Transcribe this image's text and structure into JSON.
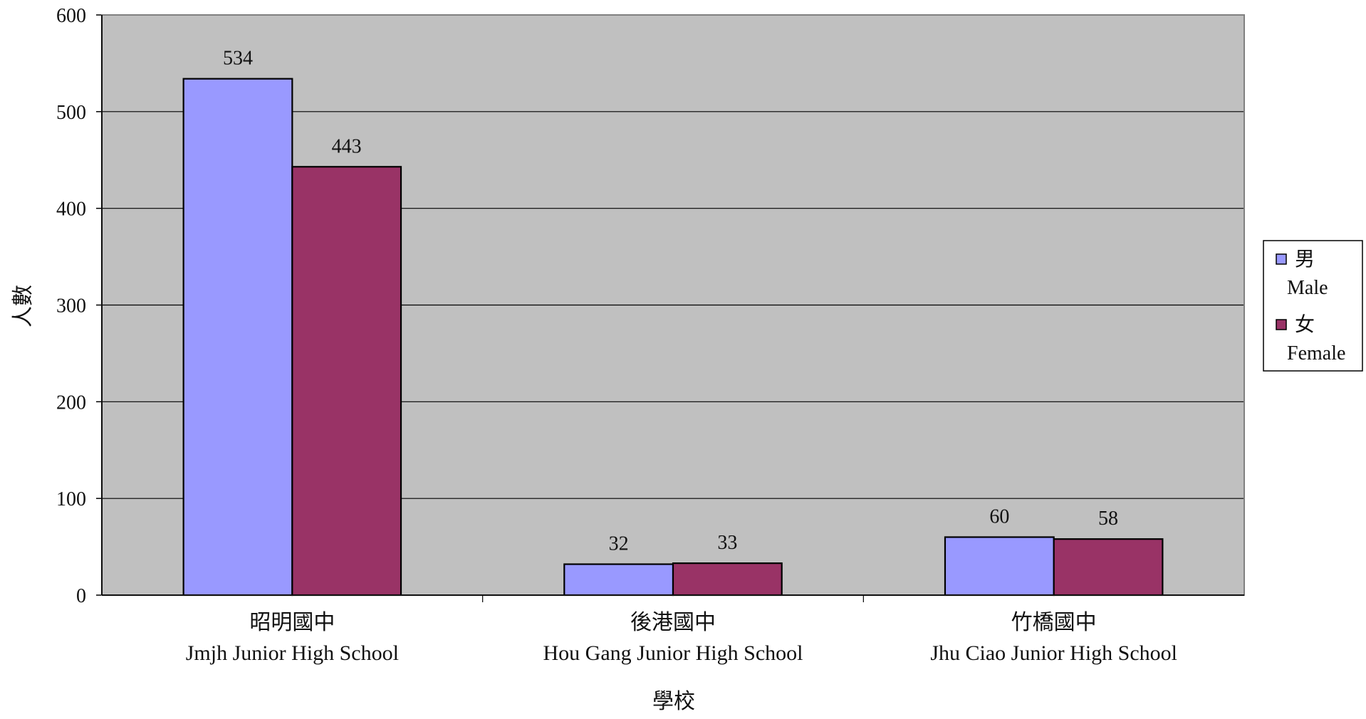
{
  "chart_data": {
    "type": "bar",
    "categories": [
      [
        "昭明國中",
        "Jmjh Junior High School"
      ],
      [
        "後港國中",
        "Hou Gang Junior High School"
      ],
      [
        "竹橋國中",
        "Jhu Ciao Junior High School"
      ]
    ],
    "series": [
      {
        "name": [
          "男",
          "Male"
        ],
        "color": "#9999ff",
        "values": [
          534,
          32,
          60
        ]
      },
      {
        "name": [
          "女",
          "Female"
        ],
        "color": "#993366",
        "values": [
          443,
          33,
          58
        ]
      }
    ],
    "xlabel": "學校",
    "ylabel": "人數",
    "ylim": [
      0,
      600
    ],
    "yticks": [
      0,
      100,
      200,
      300,
      400,
      500,
      600
    ],
    "grid": true,
    "plot_background": "#c0c0c0",
    "legend_position": "right"
  }
}
